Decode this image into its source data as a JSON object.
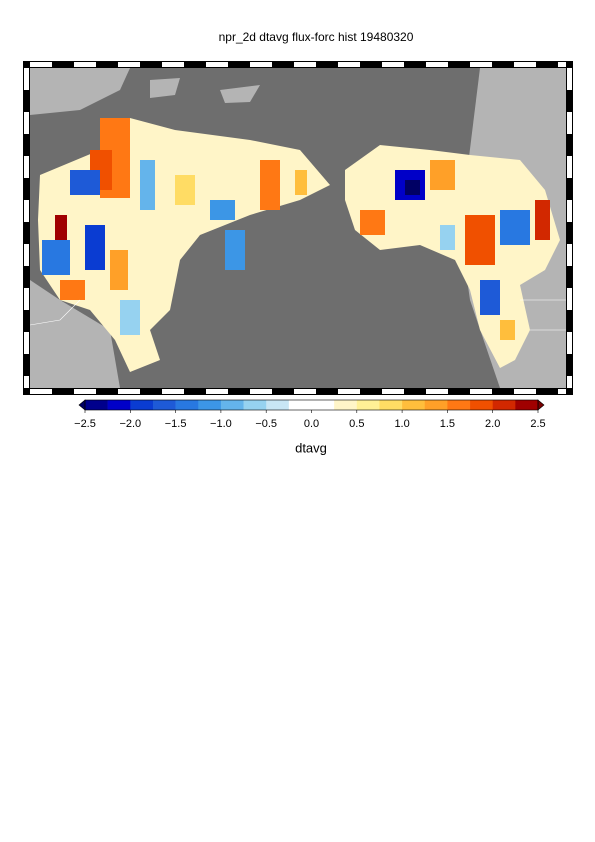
{
  "chart_data": {
    "type": "map",
    "title": "npr_2d dtavg flux-forc hist 19480320",
    "colorbar": {
      "label": "dtavg",
      "lim": [
        -2.5,
        2.5
      ],
      "ticks": [
        {
          "value": -2.5,
          "label": "−2.5"
        },
        {
          "value": -2.0,
          "label": "−2.0"
        },
        {
          "value": -1.5,
          "label": "−1.5"
        },
        {
          "value": -1.0,
          "label": "−1.0"
        },
        {
          "value": -0.5,
          "label": "−0.5"
        },
        {
          "value": 0.0,
          "label": "0.0"
        },
        {
          "value": 0.5,
          "label": "0.5"
        },
        {
          "value": 1.0,
          "label": "1.0"
        },
        {
          "value": 1.5,
          "label": "1.5"
        },
        {
          "value": 2.0,
          "label": "2.0"
        },
        {
          "value": 2.5,
          "label": "2.5"
        }
      ],
      "colors": [
        "#00008c",
        "#0000c8",
        "#0a3cd2",
        "#1e5ad7",
        "#2878e1",
        "#3c96e6",
        "#64b4eb",
        "#96d2f0",
        "#c8e6f5",
        "#ffffff",
        "#ffffff",
        "#fff5c8",
        "#fff096",
        "#ffdc64",
        "#ffbe3c",
        "#ffa028",
        "#ff7814",
        "#f05000",
        "#d22800",
        "#a00000"
      ],
      "under_color": "#000064",
      "over_color": "#780000"
    }
  }
}
